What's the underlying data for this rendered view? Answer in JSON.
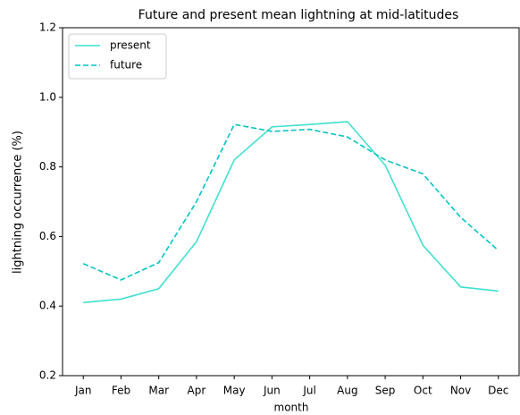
{
  "chart_data": {
    "type": "line",
    "title": "Future and present mean lightning at mid-latitudes",
    "x_label": "month",
    "y_label": "lightning occurrence (%)",
    "categories": [
      "Jan",
      "Feb",
      "Mar",
      "Apr",
      "May",
      "Jun",
      "Jul",
      "Aug",
      "Sep",
      "Oct",
      "Nov",
      "Dec"
    ],
    "series": [
      {
        "name": "present",
        "color": "#40e0d0",
        "linestyle": "solid",
        "values": [
          0.41,
          0.42,
          0.45,
          0.585,
          0.82,
          0.915,
          0.922,
          0.93,
          0.805,
          0.575,
          0.455,
          0.443
        ]
      },
      {
        "name": "future",
        "color": "#00c5c8",
        "linestyle": "dashed",
        "values": [
          0.522,
          0.475,
          0.525,
          0.7,
          0.922,
          0.902,
          0.908,
          0.886,
          0.82,
          0.78,
          0.655,
          0.56
        ]
      }
    ],
    "ylim": [
      0.2,
      1.2
    ],
    "yticks": [
      0.2,
      0.4,
      0.6,
      0.8,
      {
        "value": 1,
        "label": "1.0"
      },
      1.2
    ],
    "grid": false,
    "legend": "upper left"
  }
}
